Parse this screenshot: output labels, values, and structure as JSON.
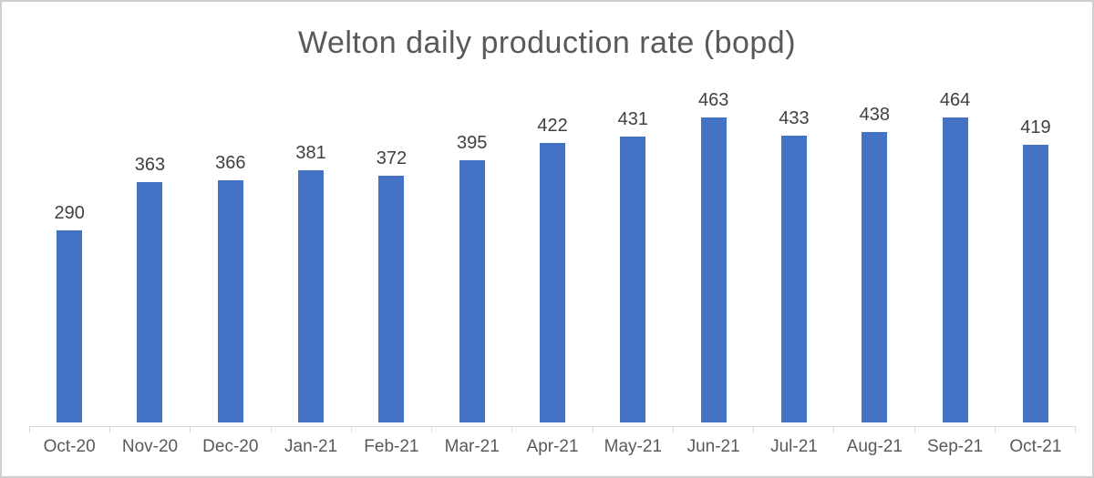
{
  "chart_data": {
    "type": "bar",
    "title": "Welton daily production rate (bopd)",
    "categories": [
      "Oct-20",
      "Nov-20",
      "Dec-20",
      "Jan-21",
      "Feb-21",
      "Mar-21",
      "Apr-21",
      "May-21",
      "Jun-21",
      "Jul-21",
      "Aug-21",
      "Sep-21",
      "Oct-21"
    ],
    "values": [
      290,
      363,
      366,
      381,
      372,
      395,
      422,
      431,
      463,
      433,
      438,
      464,
      419
    ],
    "xlabel": "",
    "ylabel": "",
    "ylim": [
      0,
      500
    ],
    "grid": false,
    "legend": false,
    "data_labels": true,
    "colors": {
      "bar": "#4472C4",
      "title_text": "#595959",
      "data_label_text": "#404040",
      "axis_label_text": "#595959",
      "axis_line": "#D9D9D9"
    }
  }
}
